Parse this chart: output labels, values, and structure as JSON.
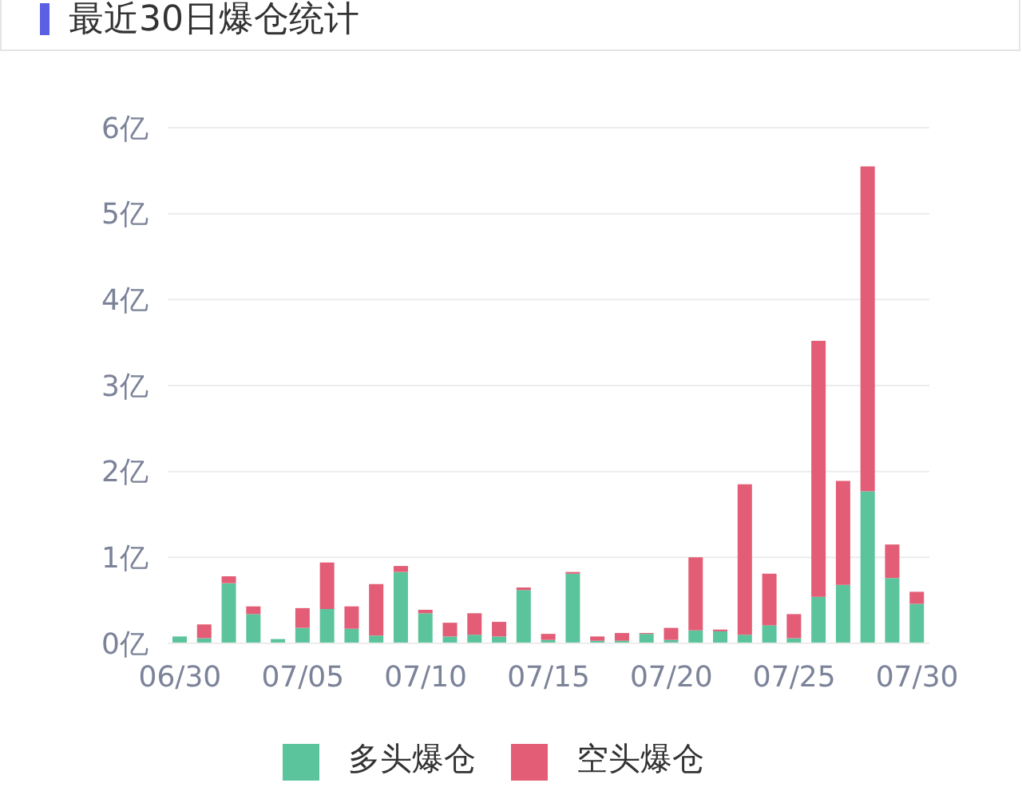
{
  "chart_data": {
    "type": "bar",
    "title": "最近30日爆仓统计",
    "categories": [
      "06/30",
      null,
      null,
      null,
      null,
      "07/05",
      null,
      null,
      null,
      null,
      "07/10",
      null,
      null,
      null,
      null,
      "07/15",
      null,
      null,
      null,
      null,
      "07/20",
      null,
      null,
      null,
      null,
      "07/25",
      null,
      null,
      null,
      null,
      "07/30"
    ],
    "series": [
      {
        "name": "多头爆仓",
        "color": "#5cc49c",
        "values": [
          0.08,
          0.06,
          0.7,
          0.34,
          0.05,
          0.18,
          0.4,
          0.17,
          0.09,
          0.83,
          0.35,
          0.08,
          0.1,
          0.08,
          0.62,
          0.04,
          0.81,
          0.03,
          0.03,
          0.11,
          0.04,
          0.15,
          0.14,
          0.1,
          0.21,
          0.06,
          0.54,
          0.68,
          1.77,
          0.76,
          0.46
        ]
      },
      {
        "name": "空头爆仓",
        "color": "#e25d75",
        "values": [
          0,
          0.16,
          0.08,
          0.09,
          0,
          0.23,
          0.54,
          0.26,
          0.6,
          0.07,
          0.04,
          0.16,
          0.25,
          0.17,
          0.03,
          0.07,
          0.02,
          0.05,
          0.09,
          0.01,
          0.14,
          0.85,
          0.02,
          1.75,
          0.6,
          0.28,
          2.98,
          1.21,
          3.78,
          0.39,
          0.14
        ]
      }
    ],
    "stacked": true,
    "ylim": [
      0,
      6
    ],
    "yticks": [
      {
        "value": 0,
        "label": "0亿"
      },
      {
        "value": 1,
        "label": "1亿"
      },
      {
        "value": 2,
        "label": "2亿"
      },
      {
        "value": 3,
        "label": "3亿"
      },
      {
        "value": 4,
        "label": "4亿"
      },
      {
        "value": 5,
        "label": "5亿"
      },
      {
        "value": 6,
        "label": "6亿"
      }
    ],
    "grid": "y",
    "legend": "bottom"
  }
}
